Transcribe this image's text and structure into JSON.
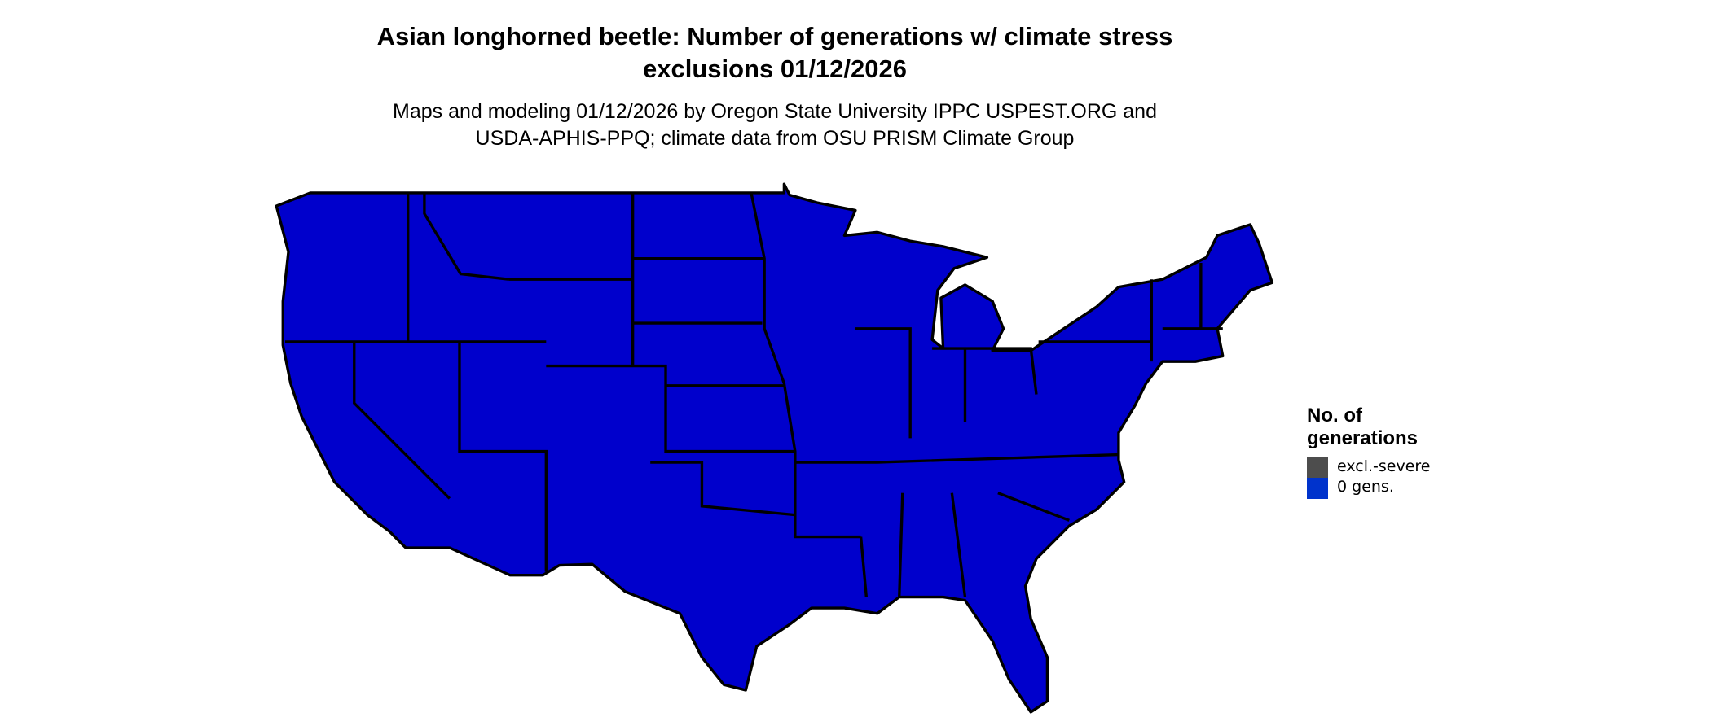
{
  "title": {
    "line1": "Asian longhorned beetle: Number of generations w/ climate stress",
    "line2": "exclusions 01/12/2026"
  },
  "subtitle": {
    "line1": "Maps and modeling 01/12/2026 by Oregon State University IPPC USPEST.ORG and",
    "line2": "USDA-APHIS-PPQ; climate data from OSU PRISM Climate Group"
  },
  "map": {
    "region": "Contiguous United States",
    "fill_color": "#0000cc",
    "border_color": "#000000"
  },
  "legend": {
    "title_line1": "No. of",
    "title_line2": "generations",
    "items": [
      {
        "label": "excl.-severe",
        "color": "#4d4d4d"
      },
      {
        "label": "0 gens.",
        "color": "#0033cc"
      }
    ]
  }
}
